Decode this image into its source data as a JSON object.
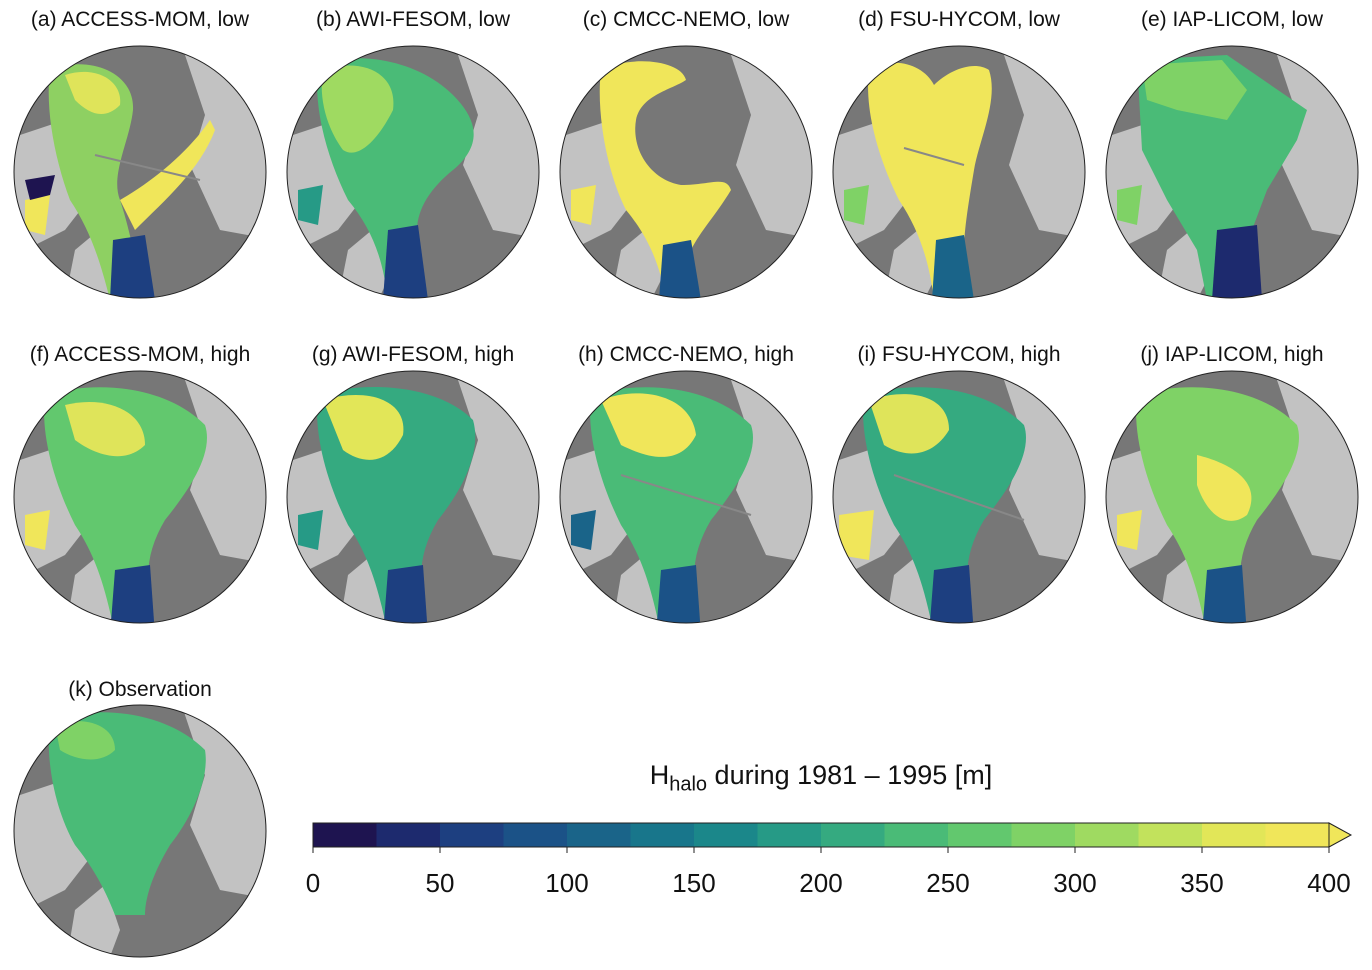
{
  "panels": [
    {
      "title": "(a) ACCESS-MOM, low"
    },
    {
      "title": "(b) AWI-FESOM, low"
    },
    {
      "title": "(c) CMCC-NEMO, low"
    },
    {
      "title": "(d) FSU-HYCOM, low"
    },
    {
      "title": "(e) IAP-LICOM, low"
    },
    {
      "title": "(f) ACCESS-MOM, high"
    },
    {
      "title": "(g) AWI-FESOM, high"
    },
    {
      "title": "(h) CMCC-NEMO, high"
    },
    {
      "title": "(i) FSU-HYCOM, high"
    },
    {
      "title": "(j) IAP-LICOM, high"
    },
    {
      "title": "(k) Observation"
    }
  ],
  "colorbar": {
    "title_main": "H",
    "title_sub": "halo",
    "title_rest": " during 1981 – 1995 [m]",
    "min": 0,
    "max": 400,
    "step": 25,
    "ticks": [
      "0",
      "50",
      "100",
      "150",
      "200",
      "250",
      "300",
      "350",
      "400"
    ],
    "colors": [
      "#1e1450",
      "#1d2a6e",
      "#1d3f80",
      "#1b5287",
      "#1a6489",
      "#18768b",
      "#1b878a",
      "#269a86",
      "#35aa80",
      "#4abb77",
      "#62c86e",
      "#7fd266",
      "#9fda61",
      "#c2e25c",
      "#e2e658",
      "#f0e65a"
    ]
  }
}
